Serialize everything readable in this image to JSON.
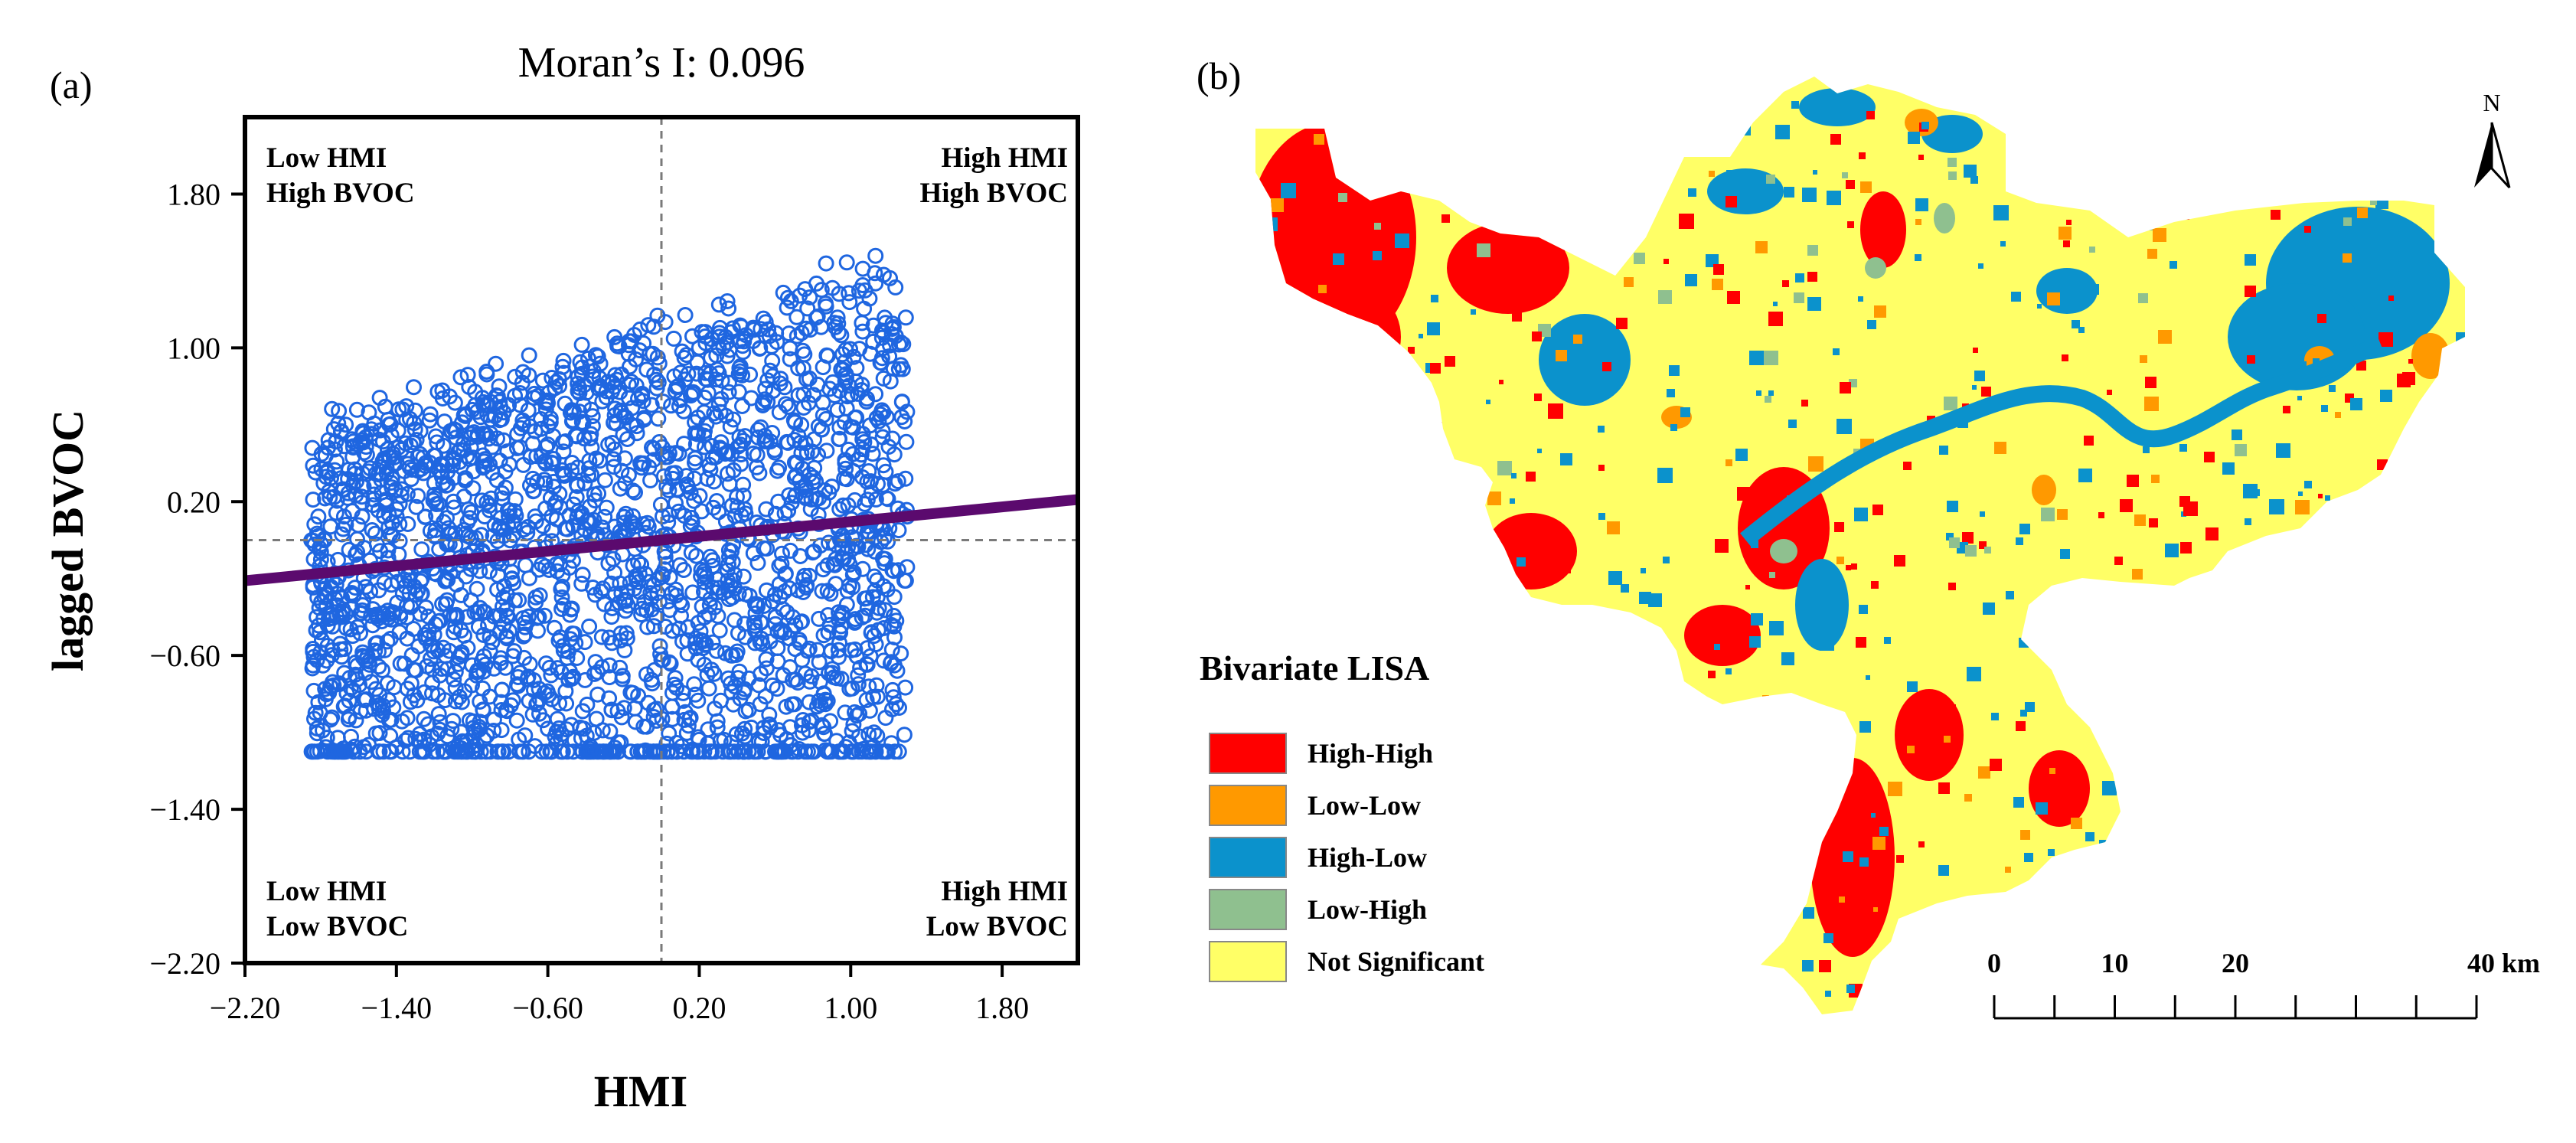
{
  "panel_a": {
    "panel_label": "(a)",
    "title": "Moran’s I: 0.096",
    "quadrants": {
      "top_left": [
        "Low HMI",
        "High BVOC"
      ],
      "top_right": [
        "High HMI",
        "High BVOC"
      ],
      "bottom_left": [
        "Low HMI",
        "Low BVOC"
      ],
      "bottom_right": [
        "High HMI",
        "Low BVOC"
      ]
    },
    "colors": {
      "points": "#1f66e0",
      "regression": "#5b0a6e",
      "divider": "#7a7a7a"
    }
  },
  "chart_data": {
    "type": "scatter",
    "xlabel": "HMI",
    "ylabel": "lagged BVOC",
    "xlim": [
      -2.2,
      2.2
    ],
    "ylim": [
      -2.2,
      2.2
    ],
    "xticks": [
      "−2.20",
      "−1.40",
      "−0.60",
      "0.20",
      "1.00",
      "1.80"
    ],
    "yticks": [
      "1.80",
      "1.00",
      "0.20",
      "−0.60",
      "−1.40",
      "−2.20"
    ],
    "xtick_values": [
      -2.2,
      -1.4,
      -0.6,
      0.2,
      1.0,
      1.8
    ],
    "ytick_values": [
      1.8,
      1.0,
      0.2,
      -0.6,
      -1.4,
      -2.2
    ],
    "mean_x": 0.0,
    "mean_y": 0.0,
    "regression": {
      "slope": 0.096,
      "intercept": 0.0
    },
    "x_range_of_points": [
      -1.85,
      1.3
    ],
    "y_floor_of_points": -1.1,
    "point_count": 2400
  },
  "panel_b": {
    "panel_label": "(b)",
    "legend_title": "Bivariate LISA",
    "legend": [
      {
        "label": "High-High",
        "color": "#ff0000"
      },
      {
        "label": "Low-Low",
        "color": "#ff9900"
      },
      {
        "label": "High-Low",
        "color": "#0b92cc"
      },
      {
        "label": "Low-High",
        "color": "#8fc08f"
      },
      {
        "label": "Not Significant",
        "color": "#ffff66"
      }
    ],
    "north_label": "N",
    "scale_labels": [
      "0",
      "10",
      "20",
      "40 km"
    ],
    "scale_values": [
      0,
      10,
      20,
      40
    ]
  }
}
